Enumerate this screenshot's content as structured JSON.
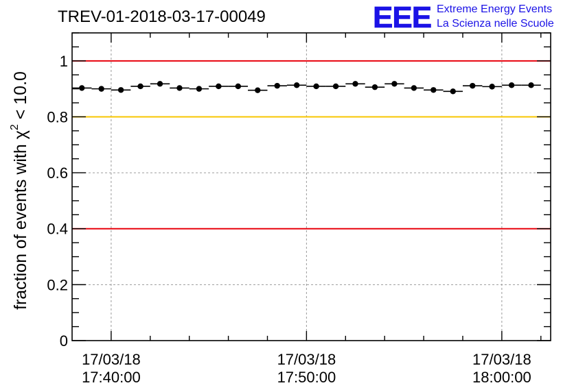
{
  "chart_data": {
    "type": "scatter",
    "title": "TREV-01-2018-03-17-00049",
    "ylabel": "fraction of events with χ",
    "ylabel_sup": "2",
    "ylabel_tail": " < 10.0",
    "ylim": [
      0,
      1.1
    ],
    "xlim": [
      -2.0,
      22.5
    ],
    "y_ticks": [
      {
        "v": 0,
        "label": "0"
      },
      {
        "v": 0.2,
        "label": "0.2"
      },
      {
        "v": 0.4,
        "label": "0.4"
      },
      {
        "v": 0.6,
        "label": "0.6"
      },
      {
        "v": 0.8,
        "label": "0.8"
      },
      {
        "v": 1.0,
        "label": "1"
      }
    ],
    "x_major_ticks": [
      {
        "v": 0,
        "date": "17/03/18",
        "time": "17:40:00"
      },
      {
        "v": 10,
        "date": "17/03/18",
        "time": "17:50:00"
      },
      {
        "v": 20,
        "date": "17/03/18",
        "time": "18:00:00"
      }
    ],
    "grid": true,
    "reference_lines": [
      {
        "y": 1.0,
        "color": "#e8000b"
      },
      {
        "y": 0.8,
        "color": "#f7c600"
      },
      {
        "y": 0.4,
        "color": "#e8000b"
      }
    ],
    "series": [
      {
        "color": "#000000",
        "x": [
          -1.5,
          -0.5,
          0.5,
          1.5,
          2.5,
          3.5,
          4.5,
          5.5,
          6.5,
          7.5,
          8.5,
          9.5,
          10.5,
          11.5,
          12.5,
          13.5,
          14.5,
          15.5,
          16.5,
          17.5,
          18.5,
          19.5,
          20.5,
          21.5
        ],
        "y": [
          0.903,
          0.9,
          0.896,
          0.909,
          0.918,
          0.903,
          0.9,
          0.909,
          0.909,
          0.895,
          0.911,
          0.913,
          0.909,
          0.909,
          0.918,
          0.906,
          0.918,
          0.903,
          0.896,
          0.891,
          0.911,
          0.908,
          0.913,
          0.913
        ],
        "x_halfwidth": 0.5
      }
    ]
  },
  "logo": {
    "mark": "EEE",
    "line1": "Extreme Energy Events",
    "line2": "La Scienza nelle Scuole",
    "color": "#1b12e6"
  }
}
